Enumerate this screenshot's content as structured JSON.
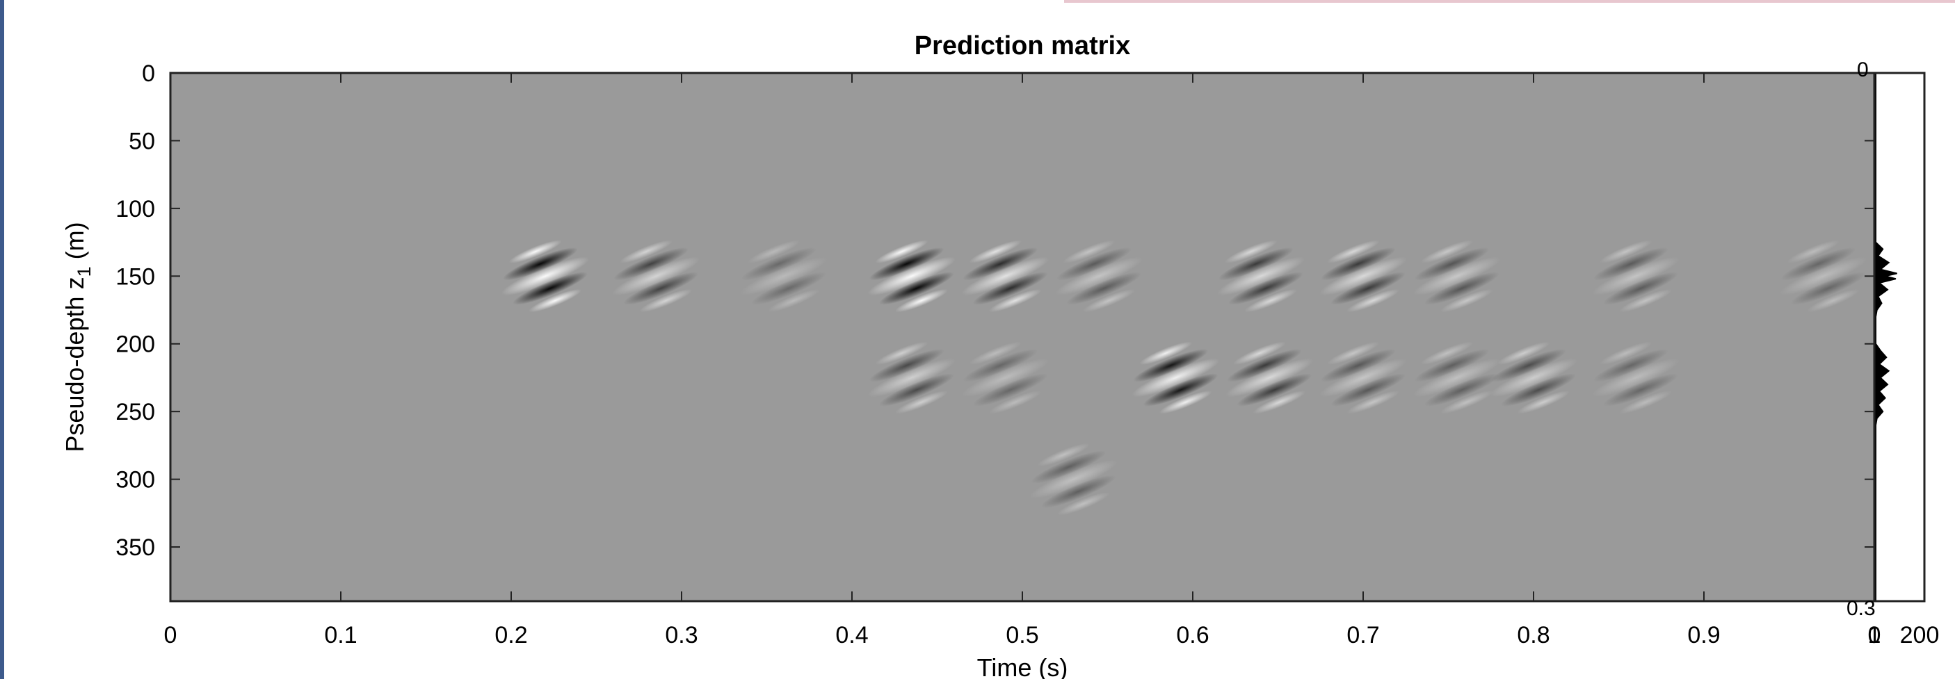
{
  "chart_data": [
    {
      "type": "heatmap",
      "title": "Prediction matrix",
      "xlabel": "Time (s)",
      "ylabel_prefix": "Pseudo-depth z",
      "ylabel_subscript": "1",
      "ylabel_suffix": " (m)",
      "xlim": [
        0,
        1
      ],
      "ylim": [
        0,
        390
      ],
      "y_reversed": true,
      "xticks": [
        "0",
        "0.1",
        "0.2",
        "0.3",
        "0.4",
        "0.5",
        "0.6",
        "0.7",
        "0.8",
        "0.9",
        "1"
      ],
      "yticks": [
        "0",
        "50",
        "100",
        "150",
        "200",
        "250",
        "300",
        "350"
      ],
      "colormap": "gray",
      "background_color": "#9a9a9a",
      "wavelets": [
        {
          "t": 0.22,
          "z": 150,
          "amp": 0.8
        },
        {
          "t": 0.285,
          "z": 150,
          "amp": 0.35
        },
        {
          "t": 0.36,
          "z": 150,
          "amp": 0.08
        },
        {
          "t": 0.435,
          "z": 150,
          "amp": 1.0
        },
        {
          "t": 0.49,
          "z": 150,
          "amp": 0.5
        },
        {
          "t": 0.545,
          "z": 150,
          "amp": 0.18
        },
        {
          "t": 0.64,
          "z": 150,
          "amp": 0.4
        },
        {
          "t": 0.7,
          "z": 150,
          "amp": 0.4
        },
        {
          "t": 0.755,
          "z": 150,
          "amp": 0.22
        },
        {
          "t": 0.86,
          "z": 150,
          "amp": 0.18
        },
        {
          "t": 0.97,
          "z": 150,
          "amp": 0.1
        },
        {
          "t": 0.435,
          "z": 225,
          "amp": 0.3
        },
        {
          "t": 0.49,
          "z": 225,
          "amp": 0.1
        },
        {
          "t": 0.59,
          "z": 225,
          "amp": 0.65
        },
        {
          "t": 0.645,
          "z": 225,
          "amp": 0.4
        },
        {
          "t": 0.7,
          "z": 225,
          "amp": 0.2
        },
        {
          "t": 0.755,
          "z": 225,
          "amp": 0.15
        },
        {
          "t": 0.8,
          "z": 225,
          "amp": 0.28
        },
        {
          "t": 0.86,
          "z": 225,
          "amp": 0.1
        },
        {
          "t": 0.53,
          "z": 300,
          "amp": 0.15
        }
      ]
    },
    {
      "type": "line",
      "orientation": "vertical",
      "xticks": [
        "0",
        "200"
      ],
      "ytick_top": "0",
      "ytick_bottom": "0.3",
      "xlim": [
        0,
        200
      ],
      "series": [
        {
          "z": [
            0,
            125,
            130,
            135,
            140,
            145,
            148,
            150,
            152,
            155,
            160,
            165,
            170,
            175,
            180,
            200,
            205,
            210,
            215,
            220,
            225,
            230,
            235,
            240,
            245,
            250,
            255,
            260,
            390
          ],
          "value": [
            0,
            0,
            30,
            10,
            55,
            20,
            90,
            40,
            85,
            15,
            50,
            10,
            25,
            5,
            0,
            0,
            20,
            45,
            15,
            55,
            20,
            50,
            15,
            40,
            10,
            30,
            5,
            0,
            0
          ]
        }
      ]
    }
  ]
}
